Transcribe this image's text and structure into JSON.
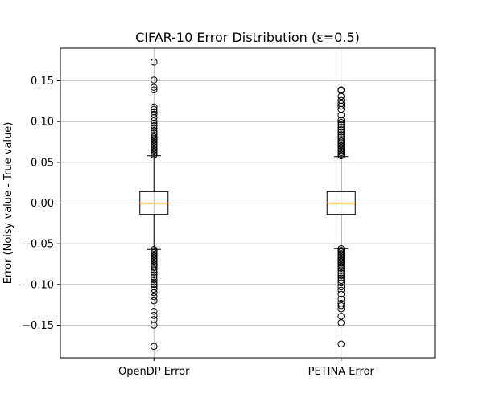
{
  "chart_data": {
    "type": "box",
    "title": "CIFAR-10 Error Distribution (ε=0.5)",
    "xlabel": "",
    "ylabel": "Error (Noisy value - True value)",
    "ylim": [
      -0.19,
      0.19
    ],
    "yticks": [
      -0.15,
      -0.1,
      -0.05,
      0.0,
      0.05,
      0.1,
      0.15
    ],
    "ytick_labels": [
      "−0.15",
      "−0.10",
      "−0.05",
      "0.00",
      "0.05",
      "0.10",
      "0.15"
    ],
    "grid": true,
    "categories": [
      "OpenDP Error",
      "PETINA Error"
    ],
    "series": [
      {
        "stats": {
          "q1": -0.014,
          "median": 0.0,
          "q3": 0.014,
          "whisker_low": -0.057,
          "whisker_high": 0.058
        },
        "outliers": [
          0.173,
          0.151,
          0.142,
          0.139,
          0.118,
          0.115,
          0.112,
          0.109,
          0.105,
          0.101,
          0.098,
          0.095,
          0.092,
          0.089,
          0.086,
          0.083,
          0.081,
          0.079,
          0.077,
          0.075,
          0.073,
          0.071,
          0.069,
          0.067,
          0.065,
          0.063,
          0.061,
          0.059,
          -0.057,
          -0.059,
          -0.061,
          -0.063,
          -0.065,
          -0.067,
          -0.069,
          -0.071,
          -0.073,
          -0.075,
          -0.077,
          -0.079,
          -0.082,
          -0.085,
          -0.088,
          -0.091,
          -0.094,
          -0.097,
          -0.1,
          -0.103,
          -0.106,
          -0.11,
          -0.115,
          -0.12,
          -0.133,
          -0.138,
          -0.143,
          -0.15,
          -0.176
        ]
      },
      {
        "stats": {
          "q1": -0.014,
          "median": 0.0,
          "q3": 0.014,
          "whisker_low": -0.056,
          "whisker_high": 0.057
        },
        "outliers": [
          0.139,
          0.138,
          0.131,
          0.126,
          0.122,
          0.119,
          0.115,
          0.108,
          0.102,
          0.099,
          0.096,
          0.093,
          0.09,
          0.087,
          0.084,
          0.081,
          0.078,
          0.076,
          0.074,
          0.072,
          0.07,
          0.068,
          0.066,
          0.064,
          0.062,
          0.06,
          0.058,
          -0.056,
          -0.058,
          -0.06,
          -0.062,
          -0.064,
          -0.066,
          -0.068,
          -0.07,
          -0.072,
          -0.074,
          -0.076,
          -0.078,
          -0.08,
          -0.083,
          -0.086,
          -0.089,
          -0.092,
          -0.095,
          -0.098,
          -0.103,
          -0.107,
          -0.112,
          -0.118,
          -0.123,
          -0.126,
          -0.13,
          -0.139,
          -0.147,
          -0.173
        ]
      }
    ],
    "colors": {
      "median": "#ff7f0e",
      "box": "#000000",
      "grid": "#b0b0b0"
    }
  }
}
